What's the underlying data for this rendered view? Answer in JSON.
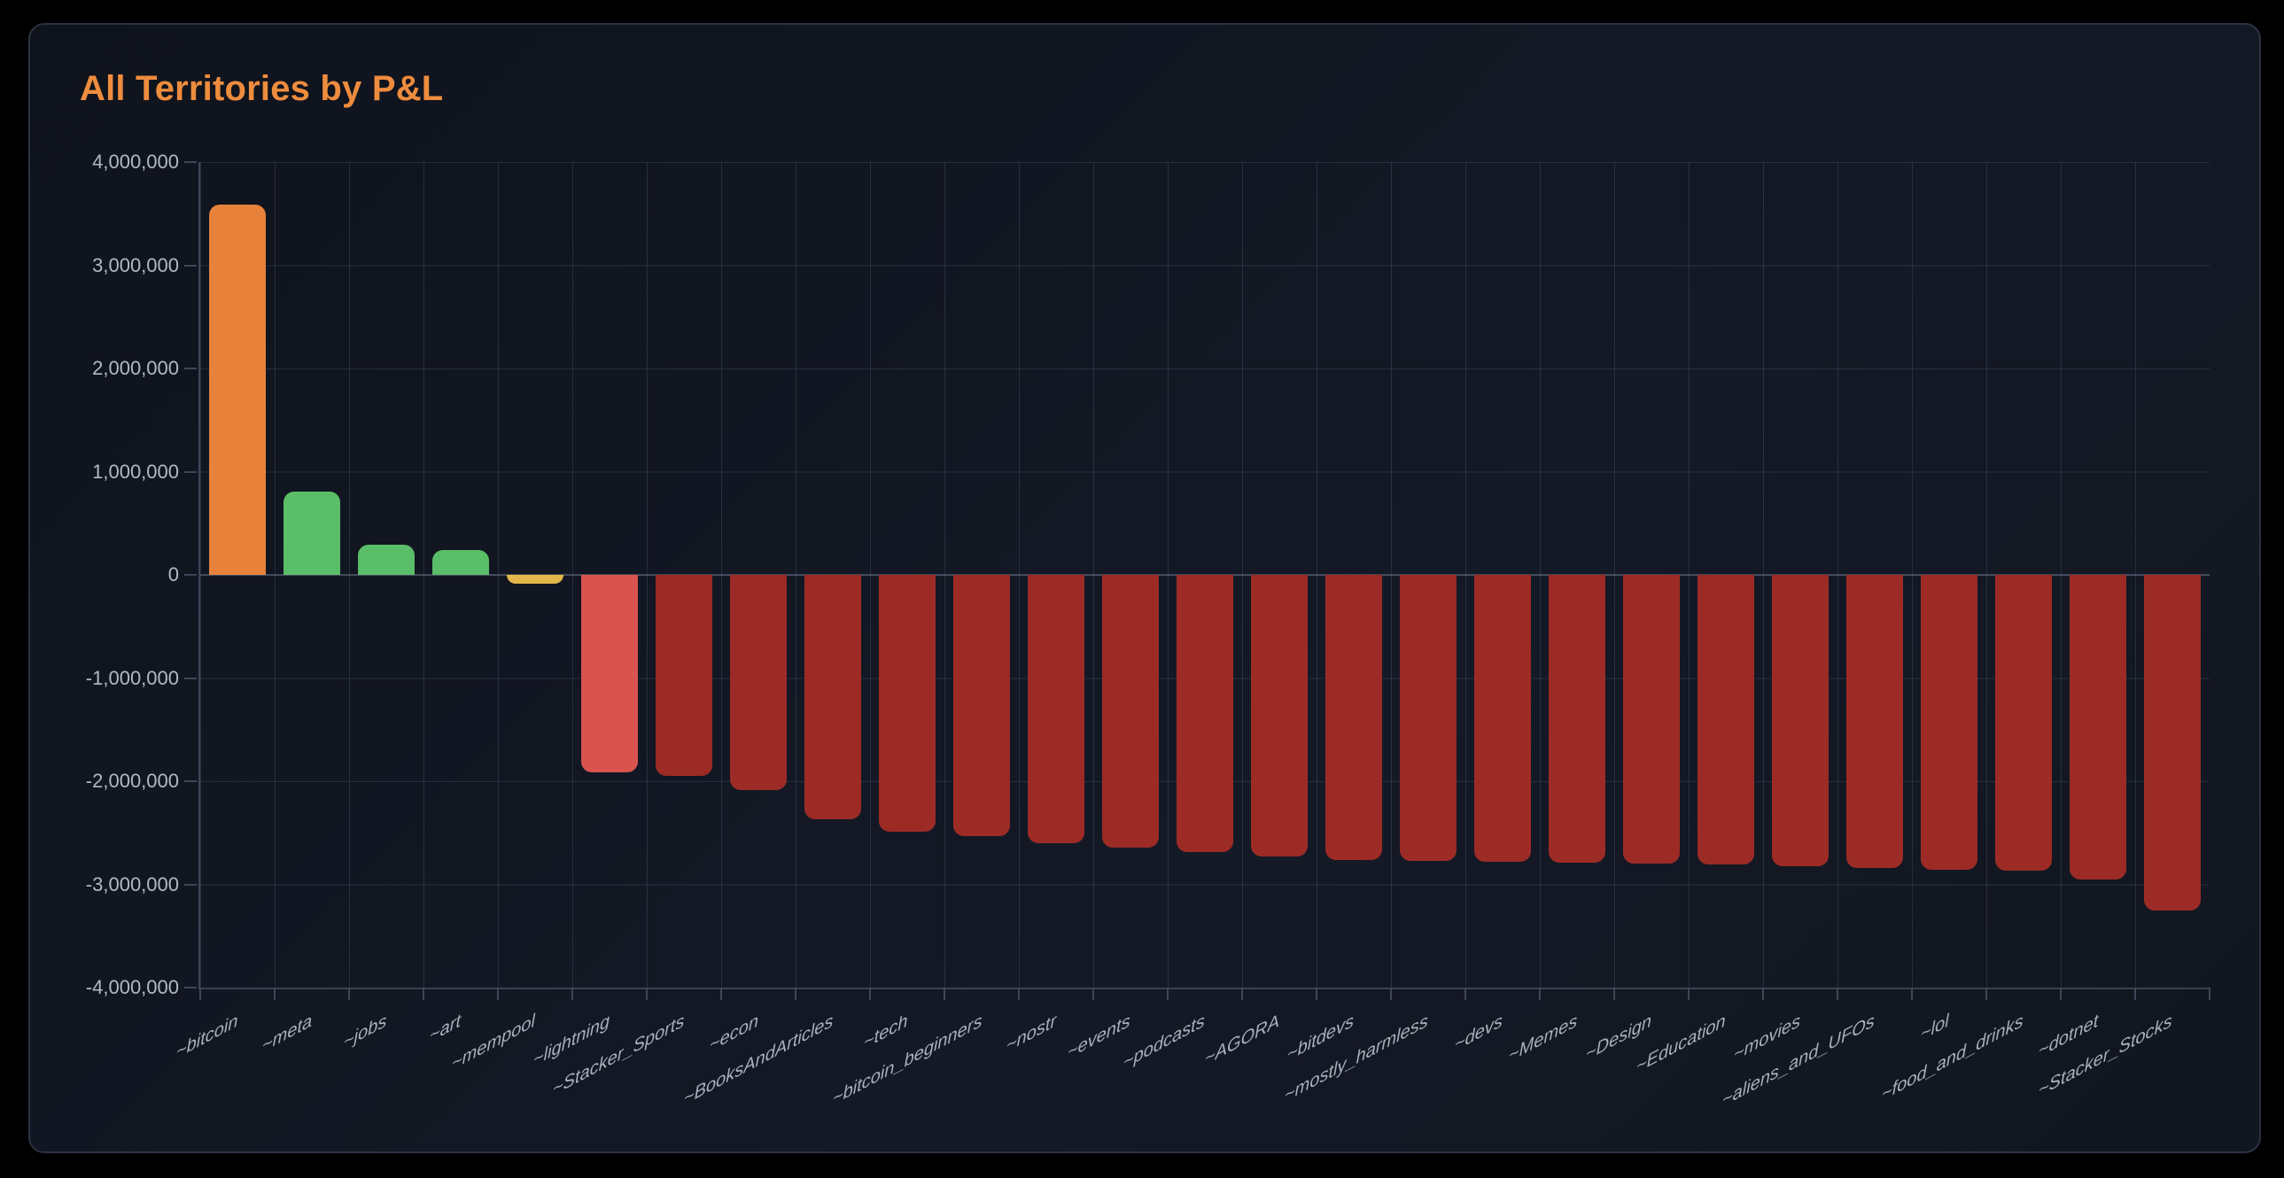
{
  "header": {
    "title": "All Territories by P&L"
  },
  "colors": {
    "page_background": "#000000",
    "card_background": "#12161f",
    "card_border": "#2b3240",
    "title": "#ee8c3e",
    "gridline": "#2a3240",
    "axis_line": "#3d4658",
    "y_tick_label": "#b2b9c5",
    "x_tick_label": "#aab1bd",
    "bar_top": "#e8823b",
    "bar_positive": "#5abd68",
    "bar_small_negative": "#e3b64a",
    "bar_mild_negative": "#d9534f",
    "bar_negative": "#9c2b26"
  },
  "chart_data": {
    "type": "bar",
    "title": "All Territories by P&L",
    "xlabel": "",
    "ylabel": "",
    "ylim": [
      -4000000,
      4000000
    ],
    "ytick_step": 1000000,
    "grid": true,
    "legend": false,
    "yticks": [
      "4,000,000",
      "3,000,000",
      "2,000,000",
      "1,000,000",
      "0",
      "-1,000,000",
      "-2,000,000",
      "-3,000,000",
      "-4,000,000"
    ],
    "categories": [
      "~bitcoin",
      "~meta",
      "~jobs",
      "~art",
      "~mempool",
      "~lightning",
      "~Stacker_Sports",
      "~econ",
      "~BooksAndArticles",
      "~tech",
      "~bitcoin_beginners",
      "~nostr",
      "~events",
      "~podcasts",
      "~AGORA",
      "~bitdevs",
      "~mostly_harmless",
      "~devs",
      "~Memes",
      "~Design",
      "~Education",
      "~movies",
      "~aliens_and_UFOs",
      "~lol",
      "~food_and_drinks",
      "~dotnet",
      "~Stacker_Stocks"
    ],
    "values": [
      3590000,
      810000,
      290000,
      240000,
      -90000,
      -1910000,
      -1950000,
      -2090000,
      -2370000,
      -2490000,
      -2530000,
      -2600000,
      -2640000,
      -2690000,
      -2730000,
      -2760000,
      -2770000,
      -2780000,
      -2790000,
      -2800000,
      -2810000,
      -2820000,
      -2840000,
      -2855000,
      -2870000,
      -2950000,
      -3250000
    ],
    "bar_colors": [
      "#e8823b",
      "#5abd68",
      "#5abd68",
      "#5abd68",
      "#e3b64a",
      "#d9534f",
      "#9c2b26",
      "#9c2b26",
      "#9c2b26",
      "#9c2b26",
      "#9c2b26",
      "#9c2b26",
      "#9c2b26",
      "#9c2b26",
      "#9c2b26",
      "#9c2b26",
      "#9c2b26",
      "#9c2b26",
      "#9c2b26",
      "#9c2b26",
      "#9c2b26",
      "#9c2b26",
      "#9c2b26",
      "#9c2b26",
      "#9c2b26",
      "#9c2b26",
      "#9c2b26"
    ]
  }
}
